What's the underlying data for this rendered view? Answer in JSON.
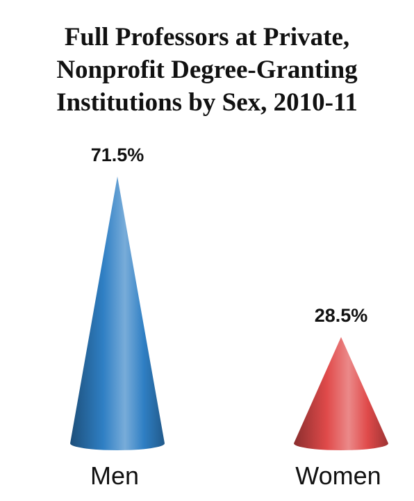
{
  "chart_data": {
    "type": "bar",
    "title_lines": [
      "Full Professors at Private,",
      "Nonprofit Degree-Granting",
      "Institutions by Sex, 2010-11"
    ],
    "categories": [
      "Men",
      "Women"
    ],
    "values": [
      71.5,
      28.5
    ],
    "value_labels": [
      "71.5%",
      "28.5%"
    ],
    "unit": "%",
    "shape": "cone",
    "colors": [
      "#2f7fc4",
      "#e04a4a"
    ],
    "grid": false,
    "legend": "none"
  }
}
